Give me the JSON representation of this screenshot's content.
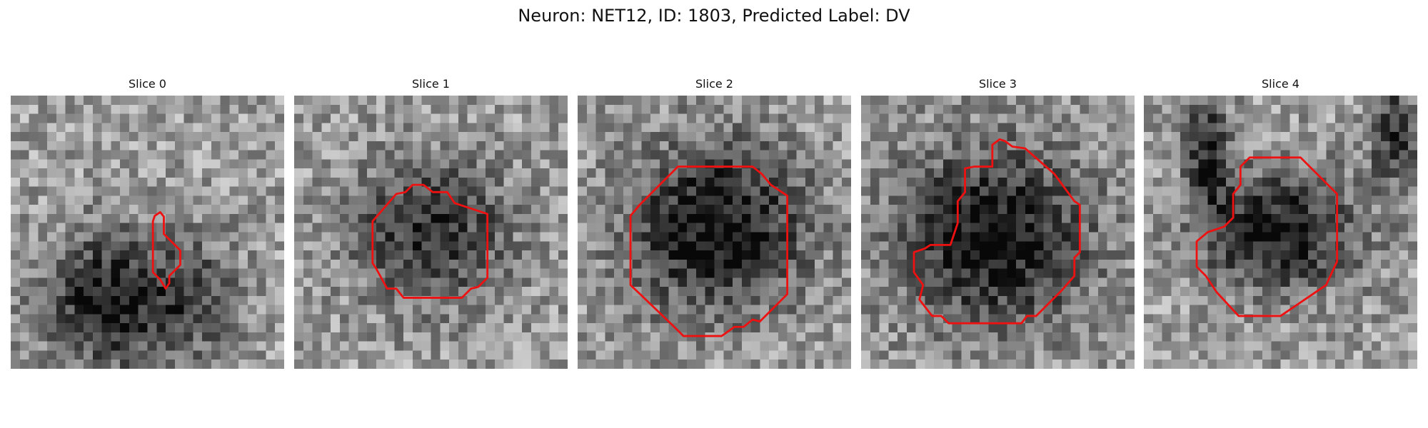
{
  "figure": {
    "title": "Neuron: NET12, ID: 1803, Predicted Label: DV",
    "contour_color": "#ee1111",
    "grid_size": 30
  },
  "panels": [
    {
      "title": "Slice 0",
      "seed": 11,
      "dark_regions": [
        {
          "cx": 10.5,
          "cy": 22.5,
          "sx": 5.0,
          "sy": 5.0,
          "strength": 0.55
        },
        {
          "cx": 20.0,
          "cy": 22.0,
          "sx": 3.5,
          "sy": 5.0,
          "strength": 0.3
        }
      ],
      "contour": [
        [
          15.8,
          13.2
        ],
        [
          16.4,
          12.8
        ],
        [
          16.8,
          13.3
        ],
        [
          16.8,
          15.2
        ],
        [
          18.6,
          17.0
        ],
        [
          18.6,
          18.6
        ],
        [
          17.4,
          19.8
        ],
        [
          17.4,
          20.6
        ],
        [
          17.0,
          21.2
        ],
        [
          16.4,
          20.2
        ],
        [
          15.6,
          19.4
        ],
        [
          15.6,
          13.8
        ]
      ]
    },
    {
      "title": "Slice 1",
      "seed": 23,
      "dark_regions": [
        {
          "cx": 15.0,
          "cy": 15.0,
          "sx": 6.0,
          "sy": 5.5,
          "strength": 0.45
        }
      ],
      "contour": [
        [
          11.2,
          10.8
        ],
        [
          12.2,
          10.6
        ],
        [
          13.0,
          9.8
        ],
        [
          14.2,
          9.8
        ],
        [
          15.2,
          10.6
        ],
        [
          16.8,
          10.6
        ],
        [
          17.6,
          11.8
        ],
        [
          21.2,
          13.0
        ],
        [
          21.2,
          20.0
        ],
        [
          20.2,
          21.0
        ],
        [
          19.4,
          21.2
        ],
        [
          18.4,
          22.2
        ],
        [
          12.0,
          22.2
        ],
        [
          11.2,
          21.2
        ],
        [
          10.2,
          21.2
        ],
        [
          9.0,
          19.0
        ],
        [
          8.6,
          18.4
        ],
        [
          8.6,
          13.8
        ]
      ]
    },
    {
      "title": "Slice 2",
      "seed": 37,
      "dark_regions": [
        {
          "cx": 15.2,
          "cy": 14.5,
          "sx": 7.0,
          "sy": 6.5,
          "strength": 0.58
        }
      ],
      "contour": [
        [
          11.0,
          7.8
        ],
        [
          19.2,
          7.8
        ],
        [
          20.2,
          8.6
        ],
        [
          21.2,
          9.8
        ],
        [
          23.0,
          11.0
        ],
        [
          23.0,
          21.8
        ],
        [
          22.0,
          22.8
        ],
        [
          20.0,
          24.8
        ],
        [
          19.2,
          24.6
        ],
        [
          18.2,
          25.4
        ],
        [
          17.2,
          25.4
        ],
        [
          15.8,
          26.4
        ],
        [
          11.6,
          26.4
        ],
        [
          10.4,
          25.2
        ],
        [
          5.8,
          20.8
        ],
        [
          5.8,
          13.2
        ],
        [
          6.8,
          12.0
        ],
        [
          11.0,
          7.8
        ]
      ]
    },
    {
      "title": "Slice 3",
      "seed": 53,
      "dark_regions": [
        {
          "cx": 14.5,
          "cy": 15.5,
          "sx": 7.5,
          "sy": 7.0,
          "strength": 0.58
        }
      ],
      "contour": [
        [
          14.4,
          5.4
        ],
        [
          15.2,
          4.8
        ],
        [
          15.8,
          5.0
        ],
        [
          16.6,
          5.6
        ],
        [
          18.0,
          5.8
        ],
        [
          21.2,
          8.6
        ],
        [
          23.4,
          11.6
        ],
        [
          24.0,
          12.0
        ],
        [
          24.0,
          17.2
        ],
        [
          23.4,
          17.8
        ],
        [
          23.4,
          19.8
        ],
        [
          22.0,
          21.4
        ],
        [
          19.2,
          24.2
        ],
        [
          18.2,
          24.2
        ],
        [
          17.6,
          25.0
        ],
        [
          9.6,
          25.0
        ],
        [
          8.8,
          24.2
        ],
        [
          7.8,
          24.2
        ],
        [
          6.4,
          22.4
        ],
        [
          6.8,
          20.8
        ],
        [
          5.8,
          19.4
        ],
        [
          5.8,
          17.2
        ],
        [
          7.0,
          16.8
        ],
        [
          7.6,
          16.4
        ],
        [
          9.8,
          16.4
        ],
        [
          10.2,
          15.2
        ],
        [
          10.6,
          14.0
        ],
        [
          10.6,
          11.6
        ],
        [
          11.4,
          10.6
        ],
        [
          11.4,
          8.0
        ],
        [
          12.4,
          7.8
        ],
        [
          14.4,
          7.8
        ]
      ]
    },
    {
      "title": "Slice 4",
      "seed": 71,
      "dark_regions": [
        {
          "cx": 15.0,
          "cy": 15.0,
          "sx": 6.0,
          "sy": 4.5,
          "strength": 0.55
        },
        {
          "cx": 27.5,
          "cy": 4.0,
          "sx": 1.8,
          "sy": 4.0,
          "strength": 0.45
        },
        {
          "cx": 7.0,
          "cy": 6.0,
          "sx": 1.6,
          "sy": 5.0,
          "strength": 0.45
        }
      ],
      "contour": [
        [
          11.6,
          6.8
        ],
        [
          17.2,
          6.8
        ],
        [
          18.2,
          7.8
        ],
        [
          21.2,
          10.8
        ],
        [
          21.2,
          18.2
        ],
        [
          20.0,
          20.8
        ],
        [
          15.0,
          24.2
        ],
        [
          10.4,
          24.2
        ],
        [
          8.0,
          21.6
        ],
        [
          6.8,
          19.8
        ],
        [
          5.8,
          18.8
        ],
        [
          5.8,
          16.0
        ],
        [
          7.0,
          15.0
        ],
        [
          8.8,
          14.4
        ],
        [
          9.8,
          13.4
        ],
        [
          9.8,
          10.8
        ],
        [
          10.6,
          9.8
        ],
        [
          10.6,
          7.8
        ],
        [
          11.6,
          6.8
        ]
      ]
    }
  ]
}
